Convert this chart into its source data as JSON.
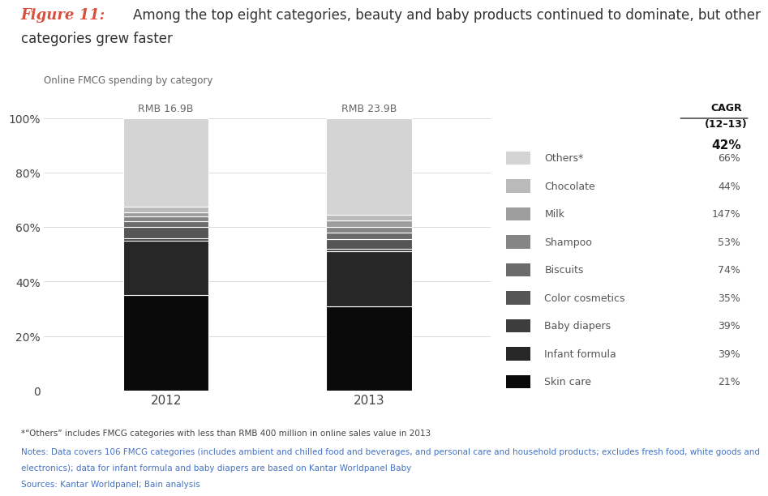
{
  "categories": [
    "2012",
    "2013"
  ],
  "bar_labels": [
    "RMB 16.9B",
    "RMB 23.9B"
  ],
  "segments": [
    {
      "name": "Skin care",
      "color": "#0a0a0a",
      "cagr": "21%",
      "values": [
        35,
        31
      ]
    },
    {
      "name": "Infant formula",
      "color": "#272727",
      "cagr": "39%",
      "values": [
        20,
        20
      ]
    },
    {
      "name": "Baby diapers",
      "color": "#3d3d3d",
      "cagr": "39%",
      "values": [
        1,
        1
      ]
    },
    {
      "name": "Color cosmetics",
      "color": "#555555",
      "cagr": "35%",
      "values": [
        4,
        3.5
      ]
    },
    {
      "name": "Biscuits",
      "color": "#6b6b6b",
      "cagr": "74%",
      "values": [
        2,
        2.5
      ]
    },
    {
      "name": "Shampoo",
      "color": "#858585",
      "cagr": "53%",
      "values": [
        2,
        2
      ]
    },
    {
      "name": "Milk",
      "color": "#9e9e9e",
      "cagr": "147%",
      "values": [
        1.5,
        2.5
      ]
    },
    {
      "name": "Chocolate",
      "color": "#bababa",
      "cagr": "44%",
      "values": [
        2,
        2
      ]
    },
    {
      "name": "Others*",
      "color": "#d4d4d4",
      "cagr": "66%",
      "values": [
        32.5,
        35.5
      ]
    }
  ],
  "cagr_overall": "42%",
  "subtitle": "Online FMCG spending by category",
  "title_figure": "Figure 11:",
  "title_line1": "Among the top eight categories, beauty and baby products continued to dominate, but other",
  "title_line2": "categories grew faster",
  "footnote1": "*“Others” includes FMCG categories with less than RMB 400 million in online sales value in 2013",
  "footnote2": "Notes: Data covers 106 FMCG categories (includes ambient and chilled food and beverages, and personal care and household products; excludes fresh food, white goods and",
  "footnote3": "electronics); data for infant formula and baby diapers are based on Kantar Worldpanel Baby",
  "footnote4": "Sources: Kantar Worldpanel; Bain analysis",
  "background_color": "#ffffff",
  "bar_width": 0.42,
  "yticks": [
    0,
    20,
    40,
    60,
    80,
    100
  ],
  "ylim": [
    0,
    108
  ],
  "cagr_header_line1": "CAGR",
  "cagr_header_line2": "(12–13)"
}
